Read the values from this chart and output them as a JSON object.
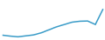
{
  "x": [
    0,
    1,
    2,
    3,
    4,
    5,
    6,
    7,
    8,
    9,
    10,
    11,
    12,
    13
  ],
  "y": [
    3.2,
    2.8,
    2.5,
    2.9,
    3.3,
    4.2,
    5.5,
    6.8,
    7.8,
    8.8,
    9.2,
    9.3,
    7.8,
    14.5
  ],
  "line_color": "#3a9cc8",
  "linewidth": 1.1,
  "background_color": "#ffffff",
  "ylim": [
    1.5,
    18
  ]
}
